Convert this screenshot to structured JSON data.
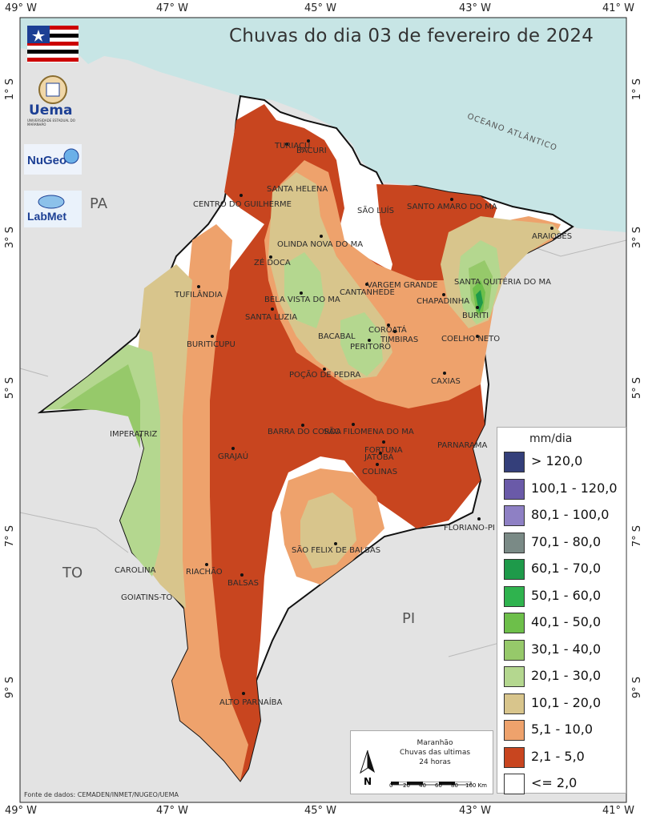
{
  "title": "Chuvas do dia 03 de fevereiro de 2024",
  "axes": {
    "lon_ticks": [
      "49° W",
      "47° W",
      "45° W",
      "43° W",
      "41° W"
    ],
    "lat_ticks": [
      "1° S",
      "3° S",
      "5° S",
      "7° S",
      "9° S"
    ]
  },
  "regions": {
    "pa": "PA",
    "to": "TO",
    "pi": "PI"
  },
  "ocean_label": "OCEANO ATLÂNTICO",
  "logos": {
    "uema": "Uema",
    "uema_sub": "UNIVERSIDADE ESTADUAL DO MARANHÃO",
    "nugeo": "NuGeo",
    "labmet": "LabMet"
  },
  "cities": [
    "TURIAÇU",
    "BACURI",
    "SANTA HELENA",
    "CENTRO DO GUILHERME",
    "SÃO LUÍS",
    "SANTO AMARO DO MA",
    "ARAIOSES",
    "OLINDA NOVA DO MA",
    "ZÉ DOCA",
    "VARGEM GRANDE",
    "CANTANHEDE",
    "SANTA QUITÉRIA DO MA",
    "TUFILÂNDIA",
    "BELA VISTA DO MA",
    "CHAPADINHA",
    "BURITI",
    "SANTA LUZIA",
    "COROATÁ",
    "TIMBIRAS",
    "COELHO NETO",
    "BURITICUPU",
    "BACABAL",
    "PERITORÓ",
    "POÇÃO DE PEDRA",
    "CAXIAS",
    "BARRA DO CORDA",
    "SÃO FILOMENA DO MA",
    "FORTUNA",
    "IMPERATRIZ",
    "GRAJAÚ",
    "JATOBÁ",
    "COLINAS",
    "PARNARAMA",
    "FLORIANO-PI",
    "SÃO FELIX DE BALSAS",
    "CAROLINA",
    "RIACHÃO",
    "BALSAS",
    "GOIATINS-TO",
    "ALTO PARNAÍBA"
  ],
  "legend": {
    "title": "mm/dia",
    "items": [
      {
        "label": "> 120,0",
        "color": "#343f7a"
      },
      {
        "label": "100,1 - 120,0",
        "color": "#6a5aa8"
      },
      {
        "label": "80,1 - 100,0",
        "color": "#8e80c4"
      },
      {
        "label": "70,1 - 80,0",
        "color": "#7a8a86"
      },
      {
        "label": "60,1 - 70,0",
        "color": "#1e9a4a"
      },
      {
        "label": "50,1 - 60,0",
        "color": "#2fb34e"
      },
      {
        "label": "40,1 - 50,0",
        "color": "#6dbf4a"
      },
      {
        "label": "30,1 - 40,0",
        "color": "#96c96a"
      },
      {
        "label": "20,1 - 30,0",
        "color": "#b4d78f"
      },
      {
        "label": "10,1 - 20,0",
        "color": "#d8c58c"
      },
      {
        "label": "5,1 - 10,0",
        "color": "#eea26c"
      },
      {
        "label": "2,1 - 5,0",
        "color": "#c8451f"
      },
      {
        "label": "<= 2,0",
        "color": "#ffffff"
      }
    ]
  },
  "scalebox": {
    "line1": "Maranhão",
    "line2": "Chuvas das ultimas",
    "line3": "24 horas",
    "north": "N",
    "scale_ticks": [
      "0",
      "20",
      "40",
      "60",
      "80",
      "100 Km"
    ]
  },
  "source": "Fonte de dados: CEMADEN/INMET/NUGEO/UEMA"
}
